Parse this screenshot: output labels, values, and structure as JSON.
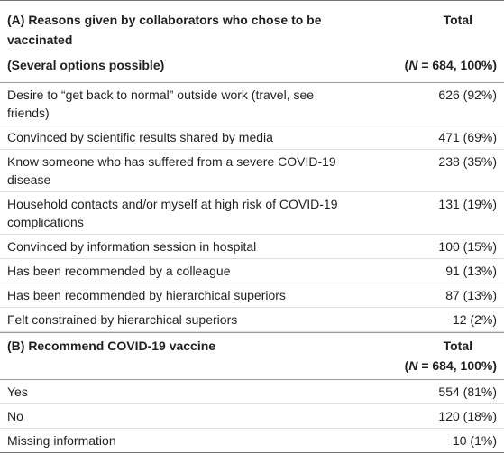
{
  "sections": [
    {
      "header": {
        "title": "(A) Reasons given by collaborators who chose to be vaccinated",
        "subtitle": "(Several options possible)",
        "total": "Total",
        "n": {
          "open": "(",
          "italic": "N",
          "rest": " = 684, 100%)"
        }
      },
      "rows": [
        {
          "label": "Desire to “get back to normal” outside work (travel, see friends)",
          "value": "626 (92%)"
        },
        {
          "label": "Convinced by scientific results shared by media",
          "value": "471 (69%)"
        },
        {
          "label": "Know someone who has suffered from a severe COVID-19 disease",
          "value": "238 (35%)"
        },
        {
          "label": "Household contacts and/or myself at high risk of COVID-19 complications",
          "value": "131 (19%)"
        },
        {
          "label": "Convinced by information session in hospital",
          "value": "100 (15%)"
        },
        {
          "label": "Has been recommended by a colleague",
          "value": "91 (13%)"
        },
        {
          "label": "Has been recommended by hierarchical superiors",
          "value": "87 (13%)"
        },
        {
          "label": "Felt constrained by hierarchical superiors",
          "value": "12 (2%)"
        }
      ]
    },
    {
      "header": {
        "title": "(B) Recommend COVID-19 vaccine",
        "total": "Total",
        "n": {
          "open": "(",
          "italic": "N",
          "rest": " = 684, 100%)"
        }
      },
      "rows": [
        {
          "label": "Yes",
          "value": "554 (81%)"
        },
        {
          "label": "No",
          "value": "120 (18%)"
        },
        {
          "label": "Missing information",
          "value": "10 (1%)"
        }
      ]
    }
  ]
}
